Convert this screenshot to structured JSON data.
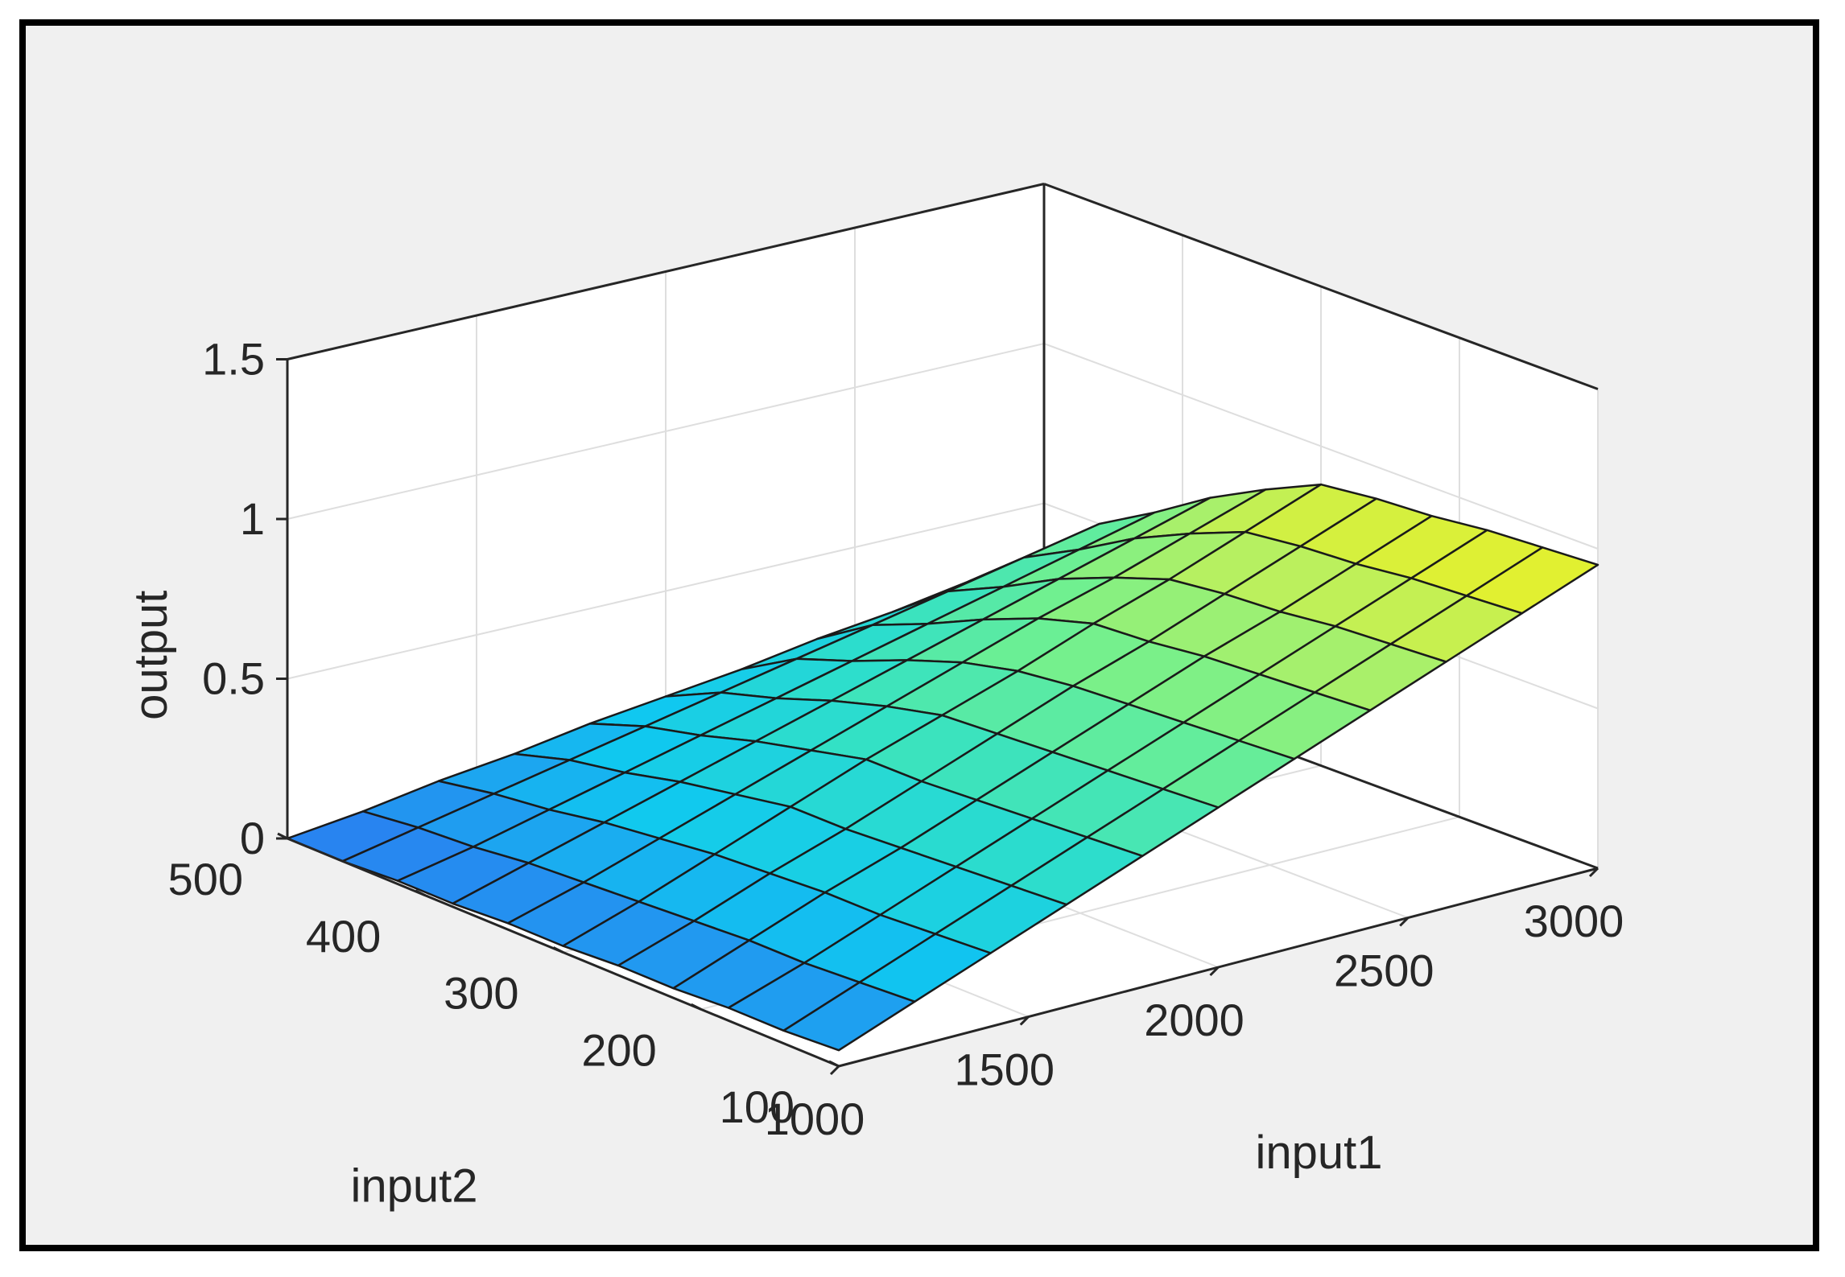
{
  "chart_data": {
    "type": "surface",
    "title": "",
    "xlabel": "input1",
    "ylabel": "input2",
    "zlabel": "output",
    "x_ticks": [
      "1000",
      "1500",
      "2000",
      "2500",
      "3000"
    ],
    "y_ticks": [
      "100",
      "200",
      "300",
      "400",
      "500"
    ],
    "z_ticks": [
      "0",
      "0.5",
      "1",
      "1.5"
    ],
    "xlim": [
      1000,
      3000
    ],
    "ylim": [
      100,
      500
    ],
    "zlim": [
      0,
      1.5
    ],
    "grid": true,
    "colormap": "parula",
    "x": [
      1000,
      1200,
      1400,
      1600,
      1800,
      2000,
      2200,
      2400,
      2600,
      2800,
      3000
    ],
    "y": [
      100,
      140,
      180,
      220,
      260,
      300,
      340,
      380,
      420,
      460,
      500
    ],
    "z": [
      [
        0.05,
        0.14,
        0.23,
        0.32,
        0.41,
        0.5,
        0.59,
        0.68,
        0.77,
        0.86,
        0.95
      ],
      [
        0.04,
        0.13,
        0.22,
        0.31,
        0.4,
        0.49,
        0.58,
        0.67,
        0.76,
        0.85,
        0.94
      ],
      [
        0.04,
        0.12,
        0.21,
        0.3,
        0.39,
        0.48,
        0.57,
        0.66,
        0.75,
        0.84,
        0.93
      ],
      [
        0.03,
        0.12,
        0.21,
        0.29,
        0.38,
        0.47,
        0.56,
        0.65,
        0.73,
        0.82,
        0.91
      ],
      [
        0.03,
        0.11,
        0.2,
        0.28,
        0.37,
        0.46,
        0.55,
        0.63,
        0.72,
        0.81,
        0.9
      ],
      [
        0.02,
        0.1,
        0.19,
        0.28,
        0.37,
        0.45,
        0.53,
        0.62,
        0.7,
        0.79,
        0.88
      ],
      [
        0.02,
        0.09,
        0.17,
        0.25,
        0.33,
        0.41,
        0.49,
        0.57,
        0.64,
        0.72,
        0.8
      ],
      [
        0.01,
        0.08,
        0.15,
        0.22,
        0.29,
        0.36,
        0.43,
        0.5,
        0.57,
        0.64,
        0.71
      ],
      [
        0.01,
        0.06,
        0.12,
        0.18,
        0.24,
        0.3,
        0.36,
        0.42,
        0.48,
        0.54,
        0.6
      ],
      [
        0.0,
        0.05,
        0.1,
        0.15,
        0.2,
        0.25,
        0.3,
        0.35,
        0.4,
        0.45,
        0.5
      ],
      [
        0.0,
        0.03,
        0.07,
        0.1,
        0.14,
        0.17,
        0.2,
        0.24,
        0.27,
        0.31,
        0.34
      ]
    ],
    "z_peak_note": "",
    "colors": {
      "background": "#f0f0f0",
      "axes": "#262626",
      "grid": "#dedede",
      "edge": "#1a1a1a",
      "colormap_stops": [
        "#2b7cf0",
        "#10c8f0",
        "#30e0c8",
        "#70f090",
        "#b8f060",
        "#f0f020"
      ]
    }
  }
}
